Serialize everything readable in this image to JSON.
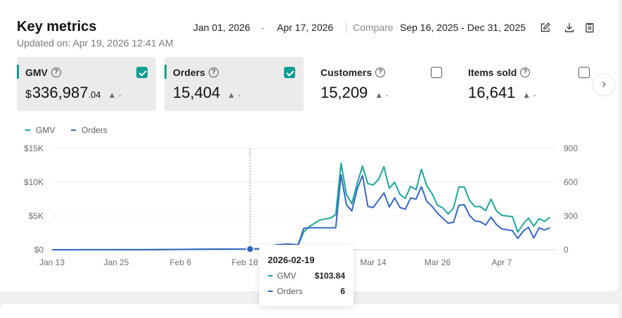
{
  "header": {
    "title": "Key metrics",
    "updated": "Updated on: Apr 19, 2026 12:41 AM",
    "date_start": "Jan 01, 2026",
    "date_sep": "-",
    "date_end": "Apr 17, 2026",
    "compare_label": "Compare",
    "compare_range": "Sep 16, 2025 - Dec 31, 2025",
    "icons": [
      "edit-icon",
      "download-icon",
      "clipboard-icon"
    ]
  },
  "cards": [
    {
      "label": "GMV",
      "currency": "$",
      "value": "336,987",
      "decimals": ".04",
      "delta": "▲ -",
      "checked": true,
      "accent": "#0f9e93"
    },
    {
      "label": "Orders",
      "value": "15,404",
      "delta": "▲ -",
      "checked": true,
      "accent": "#0f9e93"
    },
    {
      "label": "Customers",
      "value": "15,209",
      "delta": "▲ -",
      "checked": false
    },
    {
      "label": "Items sold",
      "value": "16,641",
      "delta": "▲ -",
      "checked": false
    }
  ],
  "legend": [
    {
      "name": "GMV",
      "color": "#19a69a"
    },
    {
      "name": "Orders",
      "color": "#3566c5"
    }
  ],
  "tooltip": {
    "date": "2026-02-19",
    "rows": [
      {
        "name": "GMV",
        "value": "$103.84"
      },
      {
        "name": "Orders",
        "value": "6"
      }
    ]
  },
  "chart_data": {
    "type": "line",
    "x_ticks": [
      "Jan 13",
      "Jan 25",
      "Feb 6",
      "Feb 18",
      "Mar 14",
      "Mar 26",
      "Apr 7"
    ],
    "x_range": [
      "2026-01-13",
      "2026-04-17"
    ],
    "y_left_ticks": [
      "$0",
      "$5K",
      "$10K",
      "$15K"
    ],
    "y_left_range": [
      0,
      15000
    ],
    "y_right_ticks": [
      "0",
      "300",
      "600",
      "900"
    ],
    "y_right_range": [
      0,
      900
    ],
    "grid": true,
    "highlight_date": "2026-02-19",
    "series": [
      {
        "name": "GMV",
        "color": "#19a69a",
        "axis": "left",
        "points": [
          [
            "2026-01-13",
            0
          ],
          [
            "2026-02-01",
            0
          ],
          [
            "2026-02-10",
            80
          ],
          [
            "2026-02-19",
            104
          ],
          [
            "2026-02-21",
            150
          ],
          [
            "2026-02-24",
            700
          ],
          [
            "2026-02-26",
            800
          ],
          [
            "2026-02-28",
            700
          ],
          [
            "2026-03-01",
            2600
          ],
          [
            "2026-03-02",
            3400
          ],
          [
            "2026-03-04",
            4400
          ],
          [
            "2026-03-06",
            4700
          ],
          [
            "2026-03-07",
            5200
          ],
          [
            "2026-03-08",
            12800
          ],
          [
            "2026-03-09",
            8200
          ],
          [
            "2026-03-10",
            6800
          ],
          [
            "2026-03-11",
            9800
          ],
          [
            "2026-03-12",
            12400
          ],
          [
            "2026-03-13",
            9800
          ],
          [
            "2026-03-14",
            9600
          ],
          [
            "2026-03-15",
            10400
          ],
          [
            "2026-03-16",
            12300
          ],
          [
            "2026-03-17",
            9100
          ],
          [
            "2026-03-18",
            10000
          ],
          [
            "2026-03-19",
            8200
          ],
          [
            "2026-03-20",
            7600
          ],
          [
            "2026-03-21",
            9400
          ],
          [
            "2026-03-22",
            8900
          ],
          [
            "2026-03-23",
            11900
          ],
          [
            "2026-03-24",
            9500
          ],
          [
            "2026-03-25",
            8300
          ],
          [
            "2026-03-26",
            6600
          ],
          [
            "2026-03-27",
            6200
          ],
          [
            "2026-03-28",
            5300
          ],
          [
            "2026-03-29",
            6200
          ],
          [
            "2026-03-30",
            9300
          ],
          [
            "2026-03-31",
            9300
          ],
          [
            "2026-04-01",
            7300
          ],
          [
            "2026-04-02",
            6400
          ],
          [
            "2026-04-03",
            6400
          ],
          [
            "2026-04-04",
            5800
          ],
          [
            "2026-04-05",
            7500
          ],
          [
            "2026-04-06",
            5800
          ],
          [
            "2026-04-07",
            5100
          ],
          [
            "2026-04-09",
            4900
          ],
          [
            "2026-04-10",
            2600
          ],
          [
            "2026-04-11",
            3800
          ],
          [
            "2026-04-12",
            4700
          ],
          [
            "2026-04-13",
            3500
          ],
          [
            "2026-04-14",
            4600
          ],
          [
            "2026-04-15",
            4200
          ],
          [
            "2026-04-16",
            4800
          ]
        ]
      },
      {
        "name": "Orders",
        "color": "#3566c5",
        "axis": "right",
        "points": [
          [
            "2026-01-13",
            0
          ],
          [
            "2026-02-01",
            1
          ],
          [
            "2026-02-10",
            5
          ],
          [
            "2026-02-19",
            6
          ],
          [
            "2026-02-21",
            10
          ],
          [
            "2026-02-24",
            45
          ],
          [
            "2026-02-26",
            50
          ],
          [
            "2026-02-28",
            45
          ],
          [
            "2026-03-01",
            190
          ],
          [
            "2026-03-02",
            195
          ],
          [
            "2026-03-07",
            195
          ],
          [
            "2026-03-08",
            665
          ],
          [
            "2026-03-09",
            400
          ],
          [
            "2026-03-10",
            345
          ],
          [
            "2026-03-11",
            540
          ],
          [
            "2026-03-12",
            660
          ],
          [
            "2026-03-13",
            385
          ],
          [
            "2026-03-14",
            375
          ],
          [
            "2026-03-16",
            505
          ],
          [
            "2026-03-17",
            380
          ],
          [
            "2026-03-18",
            460
          ],
          [
            "2026-03-19",
            375
          ],
          [
            "2026-03-20",
            360
          ],
          [
            "2026-03-21",
            460
          ],
          [
            "2026-03-22",
            450
          ],
          [
            "2026-03-23",
            560
          ],
          [
            "2026-03-24",
            430
          ],
          [
            "2026-03-25",
            385
          ],
          [
            "2026-03-26",
            325
          ],
          [
            "2026-03-27",
            280
          ],
          [
            "2026-03-28",
            235
          ],
          [
            "2026-03-29",
            245
          ],
          [
            "2026-03-30",
            395
          ],
          [
            "2026-03-31",
            400
          ],
          [
            "2026-04-01",
            305
          ],
          [
            "2026-04-02",
            255
          ],
          [
            "2026-04-03",
            250
          ],
          [
            "2026-04-04",
            220
          ],
          [
            "2026-04-05",
            290
          ],
          [
            "2026-04-06",
            225
          ],
          [
            "2026-04-07",
            185
          ],
          [
            "2026-04-09",
            170
          ],
          [
            "2026-04-10",
            100
          ],
          [
            "2026-04-11",
            165
          ],
          [
            "2026-04-12",
            200
          ],
          [
            "2026-04-13",
            105
          ],
          [
            "2026-04-14",
            195
          ],
          [
            "2026-04-15",
            175
          ],
          [
            "2026-04-16",
            195
          ]
        ]
      }
    ]
  }
}
